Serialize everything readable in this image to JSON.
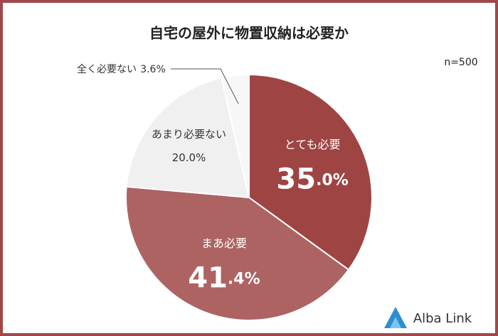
{
  "chart_data": {
    "type": "pie",
    "title": "自宅の屋外に物置収納は必要か",
    "note": "n=500",
    "brand": "Alba Link",
    "categories": [
      "とても必要",
      "まあ必要",
      "あまり必要ない",
      "全く必要ない"
    ],
    "values": [
      35.0,
      41.4,
      20.0,
      3.6
    ],
    "value_labels": [
      "35.0%",
      "41.4%",
      "20.0%",
      "3.6%"
    ],
    "colors": [
      "#9e4544",
      "#ad6362",
      "#f0f0f0",
      "#f7f7f7"
    ]
  }
}
